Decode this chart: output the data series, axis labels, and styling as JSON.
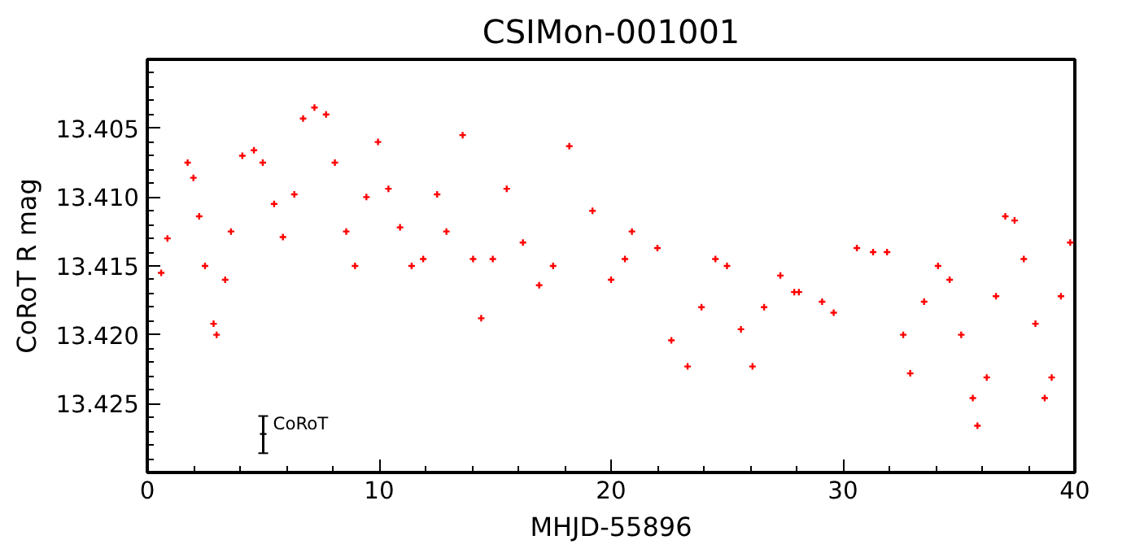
{
  "chart_data": {
    "type": "scatter",
    "title": "CSIMon-001001",
    "xlabel": "MHJD-55896",
    "ylabel": "CoRoT R mag",
    "xlim": [
      0,
      40
    ],
    "ylim": [
      13.43,
      13.4
    ],
    "xticks": [
      0,
      10,
      20,
      30,
      40
    ],
    "yticks": [
      13.405,
      {
        "value": 13.41,
        "label": "13.410"
      },
      13.415,
      {
        "value": 13.42,
        "label": "13.420"
      },
      13.425
    ],
    "grid": false,
    "marker": "cross",
    "series": [
      {
        "color": "#ff0000",
        "x": [
          0.6,
          0.87,
          1.74,
          1.99,
          2.24,
          2.49,
          2.86,
          2.99,
          3.36,
          3.61,
          4.1,
          4.6,
          4.98,
          5.47,
          5.85,
          6.34,
          6.72,
          7.21,
          7.71,
          8.09,
          8.58,
          8.96,
          9.45,
          9.95,
          10.4,
          10.9,
          11.4,
          11.9,
          12.5,
          12.9,
          13.6,
          14.05,
          14.4,
          14.9,
          15.5,
          16.2,
          16.9,
          17.5,
          18.2,
          19.2,
          20.0,
          20.6,
          20.9,
          22.0,
          22.6,
          23.3,
          23.9,
          24.5,
          25.0,
          25.6,
          26.1,
          26.6,
          27.3,
          27.9,
          28.1,
          29.1,
          29.6,
          30.6,
          31.3,
          31.9,
          32.6,
          32.9,
          33.5,
          34.1,
          34.6,
          35.1,
          35.6,
          35.8,
          36.2,
          36.6,
          37.0,
          37.4,
          37.8,
          38.3,
          38.7,
          39.0,
          39.4,
          39.8
        ],
        "values": [
          13.4155,
          13.413,
          13.4075,
          13.4086,
          13.4114,
          13.415,
          13.4192,
          13.42,
          13.416,
          13.4125,
          13.407,
          13.4066,
          13.4075,
          13.4105,
          13.4129,
          13.4098,
          13.4043,
          13.4035,
          13.404,
          13.4075,
          13.4125,
          13.415,
          13.41,
          13.406,
          13.4094,
          13.4122,
          13.415,
          13.4145,
          13.4098,
          13.4125,
          13.4055,
          13.4145,
          13.4188,
          13.4145,
          13.4094,
          13.4133,
          13.4164,
          13.415,
          13.4063,
          13.411,
          13.416,
          13.4145,
          13.4125,
          13.4137,
          13.4204,
          13.4223,
          13.418,
          13.4145,
          13.415,
          13.4196,
          13.4223,
          13.418,
          13.4157,
          13.4169,
          13.4169,
          13.4176,
          13.4184,
          13.4137,
          13.414,
          13.414,
          13.42,
          13.4228,
          13.4176,
          13.415,
          13.416,
          13.42,
          13.4246,
          13.4266,
          13.4231,
          13.4172,
          13.4114,
          13.4117,
          13.4145,
          13.4192,
          13.4246,
          13.4231,
          13.4172,
          13.4133
        ]
      },
      {
        "name": "CoRoT",
        "color": "#000000",
        "x": [
          5.0
        ],
        "values": [
          13.4272
        ],
        "errors": [
          [
            13.4259,
            13.4286
          ]
        ]
      }
    ]
  }
}
